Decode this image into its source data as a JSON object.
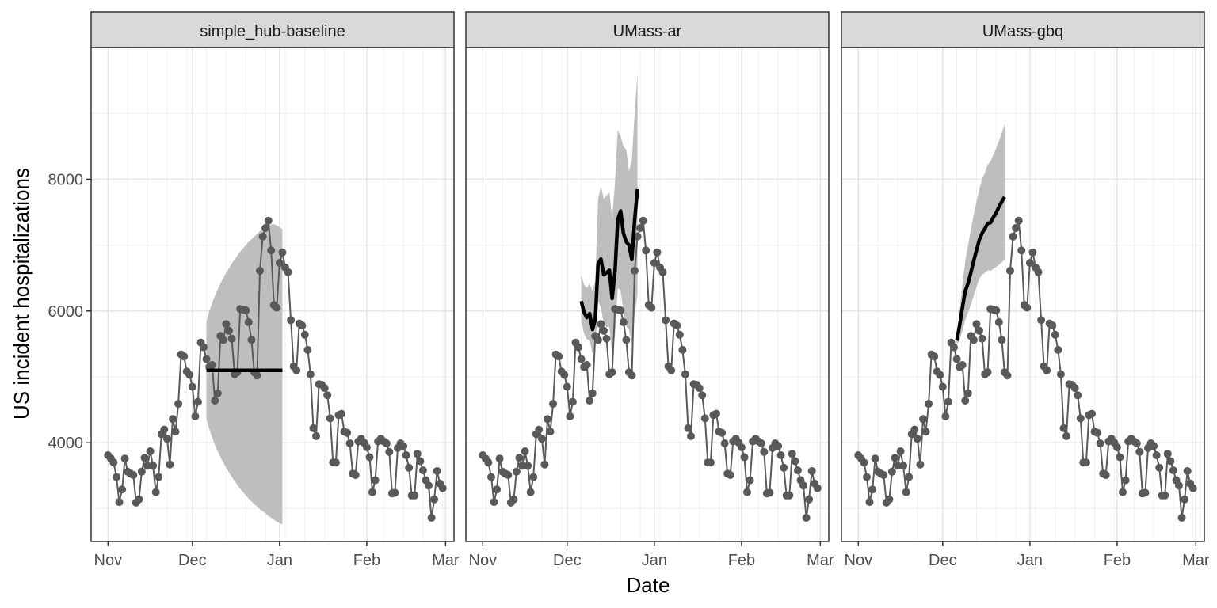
{
  "chart_data": {
    "type": "line",
    "xlabel": "Date",
    "ylabel": "US incident hospitalizations",
    "y_ticks": [
      4000,
      6000,
      8000
    ],
    "ylim": [
      2500,
      10000
    ],
    "x_ticks": [
      {
        "label": "Nov",
        "date": "2020-11-01"
      },
      {
        "label": "Dec",
        "date": "2020-12-01"
      },
      {
        "label": "Jan",
        "date": "2021-01-01"
      },
      {
        "label": "Feb",
        "date": "2021-02-01"
      },
      {
        "label": "Mar",
        "date": "2021-03-01"
      }
    ],
    "xlim": [
      "2020-10-26",
      "2021-03-04"
    ],
    "colors": {
      "observed": "#595959",
      "forecast": "#000000",
      "interval": "#bebebe",
      "strip": "#d9d9d9"
    },
    "observed": {
      "start_date": "2020-11-01",
      "values": [
        3810,
        3760,
        3700,
        3480,
        3100,
        3290,
        3760,
        3560,
        3530,
        3510,
        3090,
        3140,
        3560,
        3770,
        3650,
        3870,
        3650,
        3250,
        3480,
        4130,
        4200,
        4060,
        3670,
        4360,
        4170,
        4590,
        5340,
        5310,
        5080,
        5030,
        4850,
        4400,
        4620,
        5520,
        5450,
        5270,
        5150,
        5180,
        4640,
        4750,
        5620,
        5560,
        5800,
        5700,
        5580,
        5040,
        5070,
        6030,
        6020,
        6010,
        5830,
        5560,
        5070,
        5020,
        6610,
        7130,
        7260,
        7370,
        6920,
        6090,
        6050,
        6730,
        6890,
        6660,
        6590,
        5860,
        5160,
        5100,
        5810,
        5780,
        5640,
        5410,
        5040,
        4220,
        4100,
        4890,
        4880,
        4830,
        4720,
        4370,
        3700,
        3700,
        4420,
        4440,
        4170,
        4150,
        3990,
        3530,
        3510,
        4020,
        4060,
        4000,
        3930,
        3780,
        3250,
        3430,
        4020,
        4060,
        4020,
        3990,
        3860,
        3230,
        3240,
        3920,
        3990,
        3950,
        3810,
        3620,
        3200,
        3200,
        3830,
        3720,
        3580,
        3430,
        3350,
        2860,
        3140,
        3570,
        3380,
        3310
      ]
    },
    "panels": [
      {
        "title": "simple_hub-baseline",
        "forecast": {
          "start_date": "2020-12-06",
          "values": [
            5100,
            5100,
            5100,
            5100,
            5100,
            5100,
            5100,
            5100,
            5100,
            5100,
            5100,
            5100,
            5100,
            5100,
            5100,
            5100,
            5100,
            5100,
            5100,
            5100,
            5100,
            5100,
            5100,
            5100,
            5100,
            5100,
            5100,
            5100
          ]
        },
        "interval": {
          "start_date": "2020-12-06",
          "lower": [
            4360,
            4210,
            4080,
            3970,
            3870,
            3780,
            3700,
            3620,
            3550,
            3480,
            3420,
            3360,
            3300,
            3250,
            3200,
            3150,
            3110,
            3070,
            3030,
            2990,
            2960,
            2930,
            2890,
            2860,
            2830,
            2800,
            2780,
            2760
          ],
          "upper": [
            5840,
            5990,
            6120,
            6230,
            6330,
            6420,
            6500,
            6580,
            6650,
            6720,
            6780,
            6840,
            6900,
            6950,
            7000,
            7050,
            7090,
            7130,
            7170,
            7210,
            7240,
            7270,
            7290,
            7310,
            7320,
            7300,
            7270,
            7240
          ]
        }
      },
      {
        "title": "UMass-ar",
        "forecast": {
          "start_date": "2020-12-06",
          "values": [
            6150,
            5980,
            5900,
            5960,
            5720,
            5870,
            6720,
            6790,
            6550,
            6580,
            6620,
            6190,
            6600,
            7390,
            7520,
            7180,
            7050,
            7000,
            6780,
            7380,
            7850
          ]
        },
        "interval": {
          "start_date": "2020-12-06",
          "lower": [
            5840,
            5660,
            5570,
            5560,
            5350,
            5420,
            6150,
            6050,
            5810,
            5750,
            5760,
            5340,
            5620,
            6350,
            6320,
            6000,
            5770,
            5710,
            5510,
            5950,
            6250
          ],
          "upper": [
            6550,
            6400,
            6350,
            6420,
            6300,
            6450,
            7700,
            7900,
            7700,
            7750,
            7800,
            7400,
            7950,
            8750,
            8650,
            8500,
            8450,
            8120,
            8300,
            9000,
            9600
          ]
        }
      },
      {
        "title": "UMass-gbq",
        "forecast": {
          "start_date": "2020-12-06",
          "values": [
            5550,
            5780,
            6050,
            6300,
            6420,
            6580,
            6760,
            6920,
            7080,
            7180,
            7250,
            7330,
            7340,
            7420,
            7490,
            7580,
            7660,
            7730
          ]
        },
        "interval": {
          "start_date": "2020-12-06",
          "lower": [
            5490,
            5560,
            5700,
            5860,
            5980,
            6090,
            6230,
            6360,
            6490,
            6550,
            6580,
            6620,
            6610,
            6640,
            6670,
            6700,
            6740,
            6780
          ],
          "upper": [
            5640,
            6000,
            6400,
            6760,
            7000,
            7230,
            7460,
            7660,
            7850,
            8000,
            8100,
            8220,
            8270,
            8370,
            8470,
            8580,
            8700,
            8840
          ]
        }
      }
    ]
  }
}
